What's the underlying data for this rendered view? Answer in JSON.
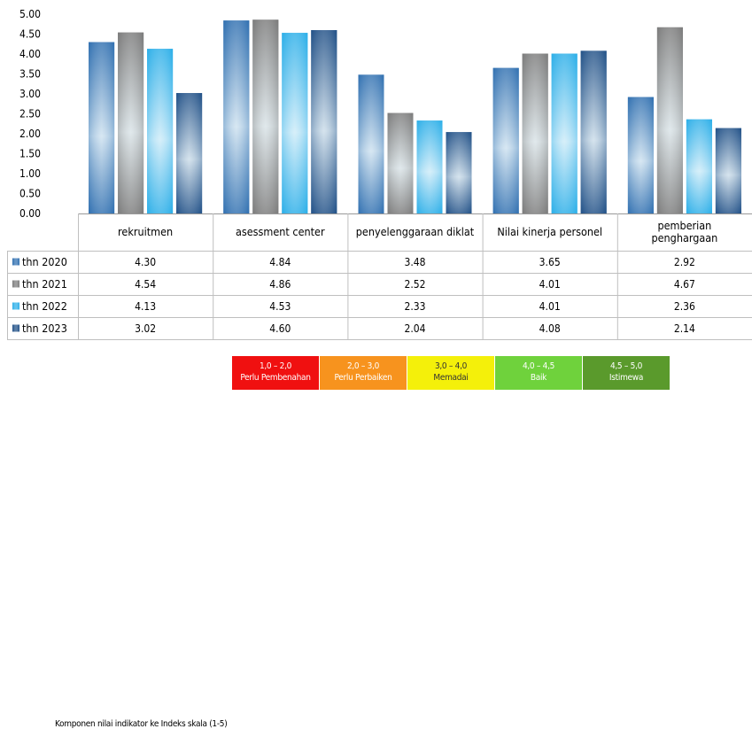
{
  "chart_data": {
    "type": "bar",
    "categories": [
      "rekruitmen",
      "asessment center",
      "penyelenggaraan diklat",
      "Nilai kinerja personel",
      "pemberian penghargaan"
    ],
    "category_lines": [
      [
        "rekruitmen"
      ],
      [
        "asessment center"
      ],
      [
        "penyelenggaraan diklat"
      ],
      [
        "Nilai kinerja personel"
      ],
      [
        "pemberian",
        "penghargaan"
      ]
    ],
    "series": [
      {
        "name": "thn 2020",
        "values": [
          "4.30",
          "4.84",
          "3.48",
          "3.65",
          "2.92"
        ],
        "color": "#2f6fb0"
      },
      {
        "name": "thn 2021",
        "values": [
          "4.54",
          "4.86",
          "2.52",
          "4.01",
          "4.67"
        ],
        "color": "#7a7a7a"
      },
      {
        "name": "thn 2022",
        "values": [
          "4.13",
          "4.53",
          "2.33",
          "4.01",
          "2.36"
        ],
        "color": "#2aaee8"
      },
      {
        "name": "thn 2023",
        "values": [
          "3.02",
          "4.60",
          "2.04",
          "4.08",
          "2.14"
        ],
        "color": "#1f4f86"
      }
    ],
    "ylim": [
      0,
      5
    ],
    "yticks": [
      "0.00",
      "0.50",
      "1.00",
      "1.50",
      "2.00",
      "2.50",
      "3.00",
      "3.50",
      "4.00",
      "4.50",
      "5.00"
    ],
    "legend": "data-table",
    "grid": false
  },
  "scale_legend": {
    "title": "Komponen nilai indikator ke Indeks skala (1-5)",
    "items": [
      {
        "range": "1,0 – 2,0",
        "label": "Perlu Pembenahan",
        "color": "#f01010"
      },
      {
        "range": "2,0 – 3,0",
        "label": "Perlu Perbaiken",
        "color": "#f7931e"
      },
      {
        "range": "3,0 – 4,0",
        "label": "Memadai",
        "color": "#f4f00a"
      },
      {
        "range": "4,0 – 4,5",
        "label": "Baik",
        "color": "#6fd23c"
      },
      {
        "range": "4,5 – 5,0",
        "label": "Istimewa",
        "color": "#5a9a2c"
      }
    ]
  }
}
